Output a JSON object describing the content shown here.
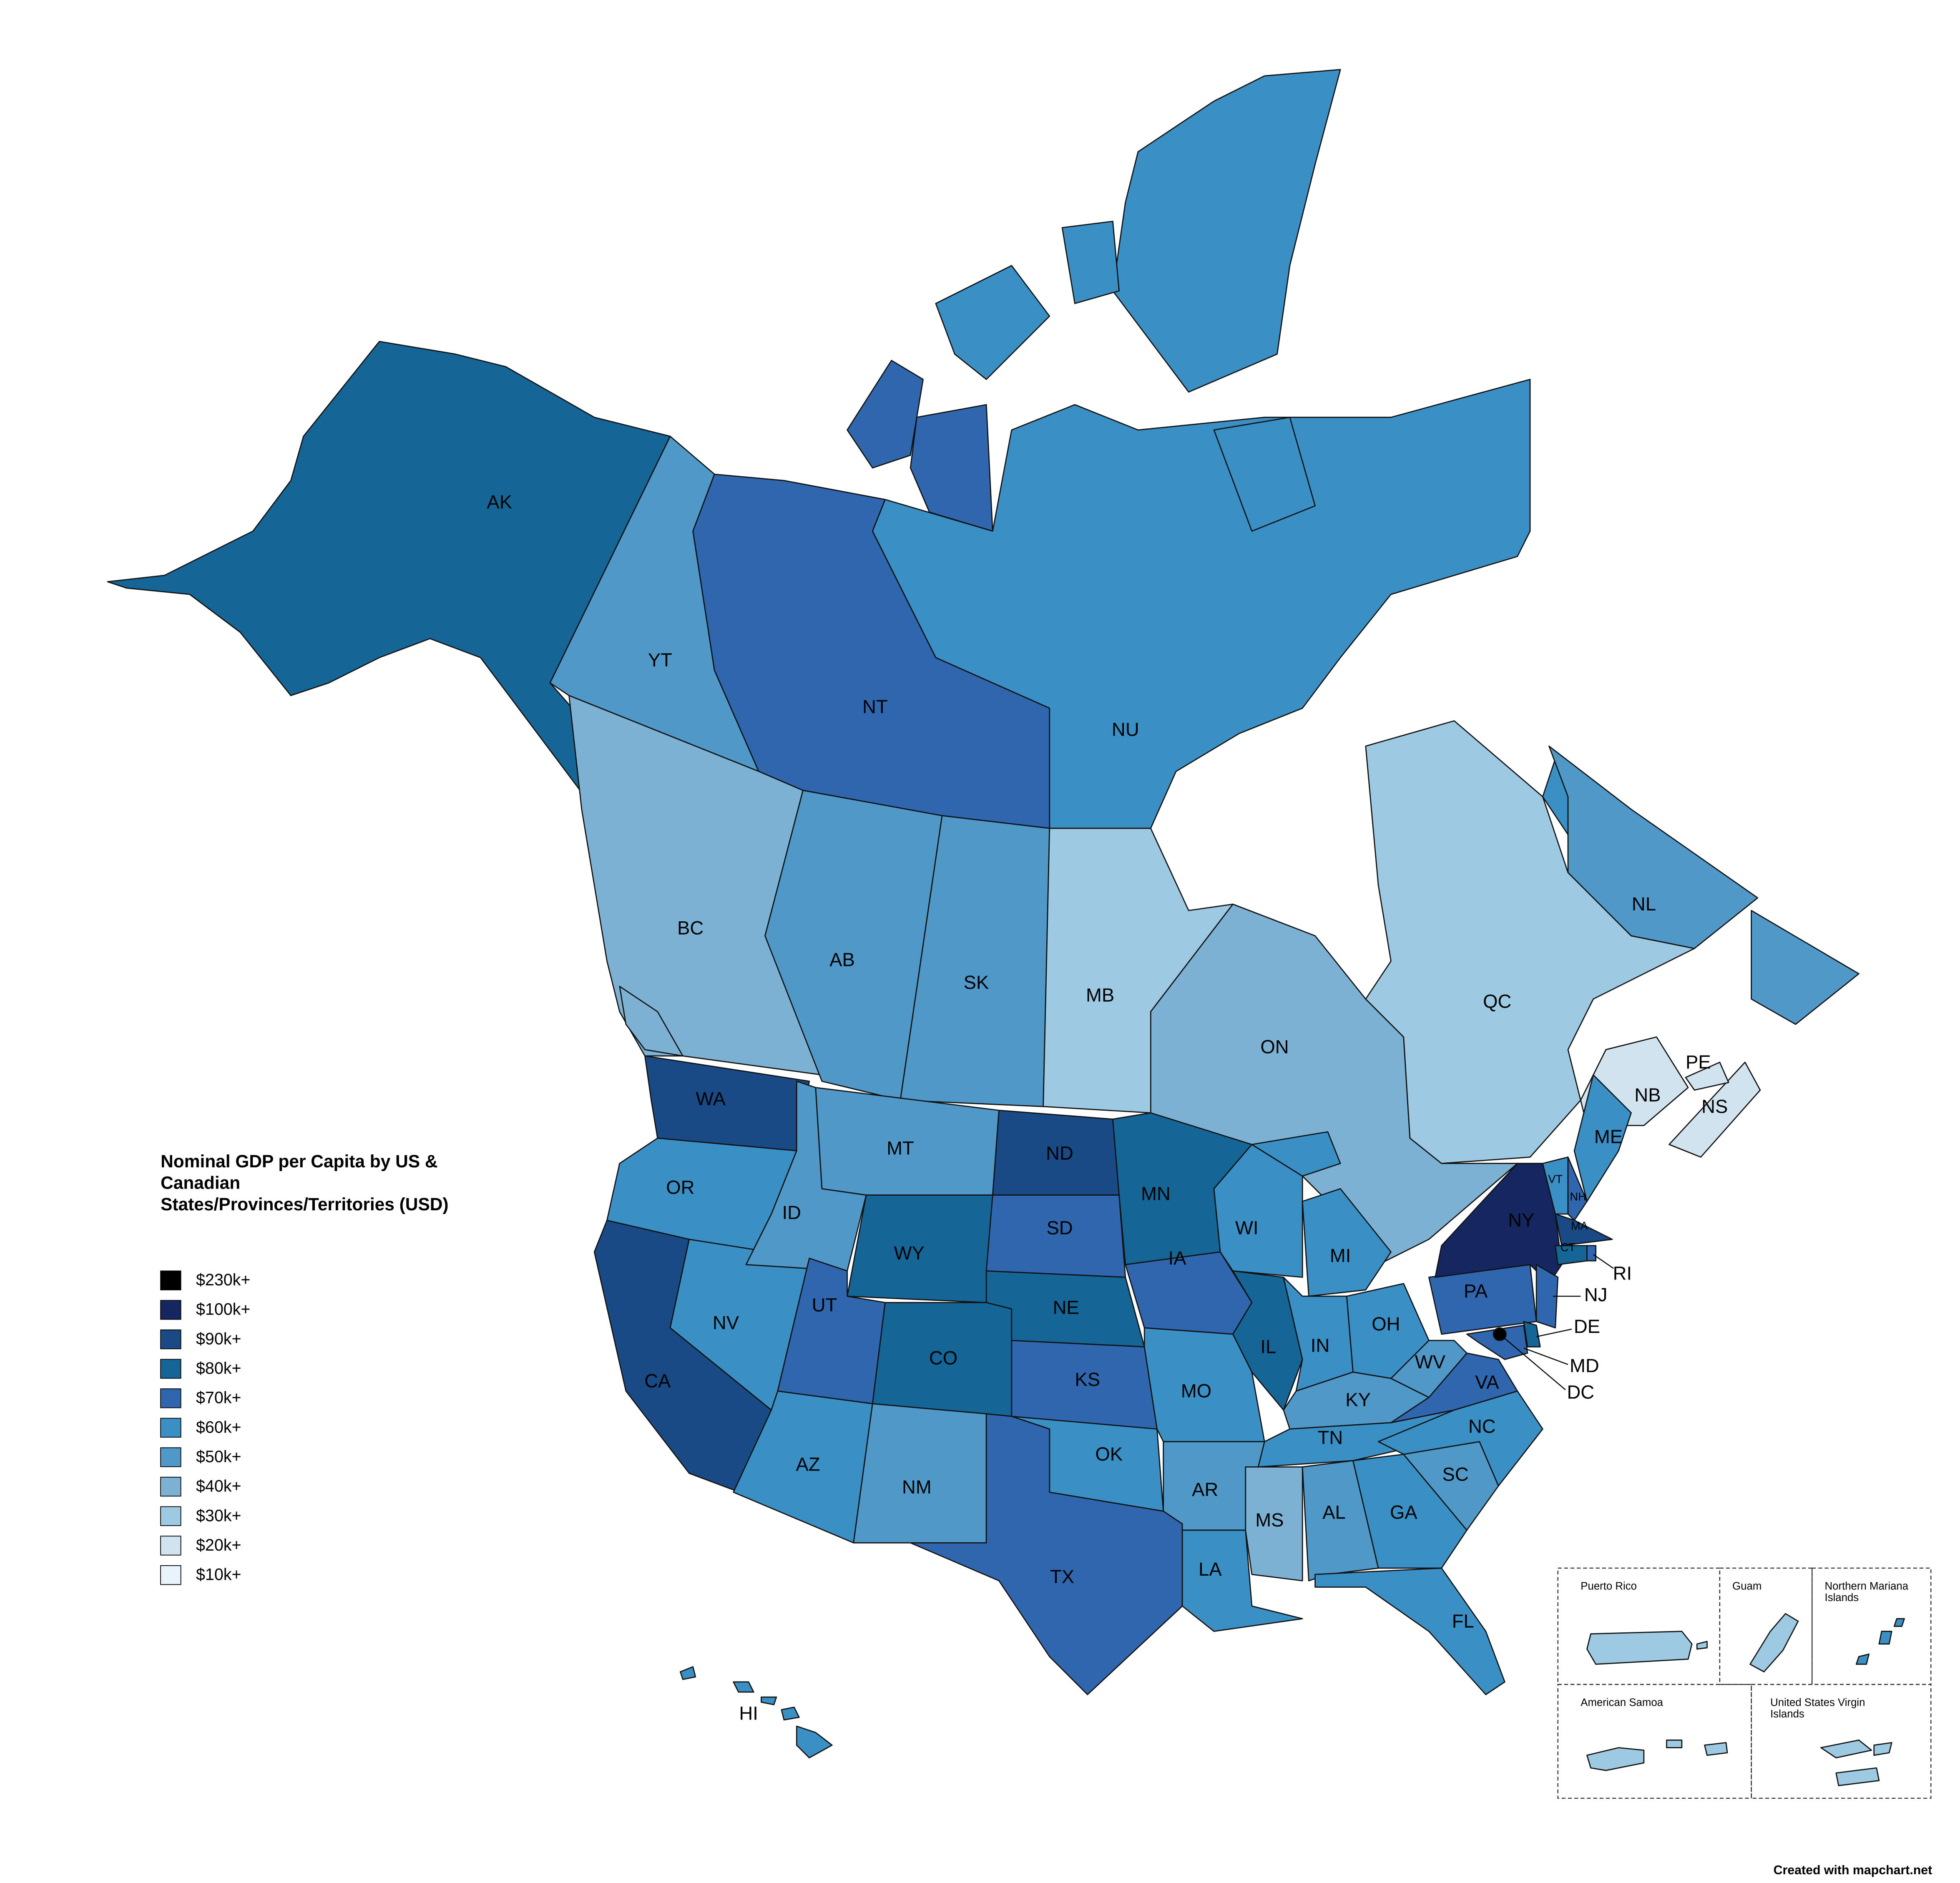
{
  "title": "Nominal GDP per Capita by US & Canadian States/Provinces/Territories (USD)",
  "legend": [
    {
      "label": "$230k+",
      "color": "#000000"
    },
    {
      "label": "$100k+",
      "color": "#14285f"
    },
    {
      "label": "$90k+",
      "color": "#1a4a86"
    },
    {
      "label": "$80k+",
      "color": "#156596"
    },
    {
      "label": "$70k+",
      "color": "#2f66ad"
    },
    {
      "label": "$60k+",
      "color": "#3a8fc4"
    },
    {
      "label": "$50k+",
      "color": "#4f98c8"
    },
    {
      "label": "$40k+",
      "color": "#7db1d4"
    },
    {
      "label": "$30k+",
      "color": "#9dcae2"
    },
    {
      "label": "$20k+",
      "color": "#d0e3ee"
    },
    {
      "label": "$10k+",
      "color": "#e9f4fa"
    }
  ],
  "regions": [
    {
      "label": "AK",
      "color": "#156596"
    },
    {
      "label": "YT",
      "color": "#4f98c8"
    },
    {
      "label": "NT",
      "color": "#2f66ad"
    },
    {
      "label": "NU",
      "color": "#3a8fc4"
    },
    {
      "label": "BC",
      "color": "#7db1d4"
    },
    {
      "label": "AB",
      "color": "#4f98c8"
    },
    {
      "label": "SK",
      "color": "#4f98c8"
    },
    {
      "label": "MB",
      "color": "#9dcae2"
    },
    {
      "label": "ON",
      "color": "#7db1d4"
    },
    {
      "label": "QC",
      "color": "#9dcae2"
    },
    {
      "label": "NL",
      "color": "#4f98c8"
    },
    {
      "label": "NB",
      "color": "#d0e3ee"
    },
    {
      "label": "NS",
      "color": "#d0e3ee"
    },
    {
      "label": "PE",
      "color": "#d0e3ee"
    },
    {
      "label": "WA",
      "color": "#1a4a86"
    },
    {
      "label": "OR",
      "color": "#3a8fc4"
    },
    {
      "label": "CA",
      "color": "#1a4a86"
    },
    {
      "label": "NV",
      "color": "#3a8fc4"
    },
    {
      "label": "ID",
      "color": "#4f98c8"
    },
    {
      "label": "MT",
      "color": "#4f98c8"
    },
    {
      "label": "WY",
      "color": "#156596"
    },
    {
      "label": "UT",
      "color": "#2f66ad"
    },
    {
      "label": "CO",
      "color": "#156596"
    },
    {
      "label": "AZ",
      "color": "#3a8fc4"
    },
    {
      "label": "NM",
      "color": "#4f98c8"
    },
    {
      "label": "ND",
      "color": "#1a4a86"
    },
    {
      "label": "SD",
      "color": "#2f66ad"
    },
    {
      "label": "NE",
      "color": "#156596"
    },
    {
      "label": "KS",
      "color": "#2f66ad"
    },
    {
      "label": "OK",
      "color": "#3a8fc4"
    },
    {
      "label": "TX",
      "color": "#2f66ad"
    },
    {
      "label": "MN",
      "color": "#156596"
    },
    {
      "label": "IA",
      "color": "#2f66ad"
    },
    {
      "label": "MO",
      "color": "#3a8fc4"
    },
    {
      "label": "AR",
      "color": "#4f98c8"
    },
    {
      "label": "LA",
      "color": "#3a8fc4"
    },
    {
      "label": "WI",
      "color": "#3a8fc4"
    },
    {
      "label": "IL",
      "color": "#156596"
    },
    {
      "label": "MI",
      "color": "#3a8fc4"
    },
    {
      "label": "IN",
      "color": "#3a8fc4"
    },
    {
      "label": "OH",
      "color": "#3a8fc4"
    },
    {
      "label": "KY",
      "color": "#4f98c8"
    },
    {
      "label": "TN",
      "color": "#3a8fc4"
    },
    {
      "label": "MS",
      "color": "#7db1d4"
    },
    {
      "label": "AL",
      "color": "#4f98c8"
    },
    {
      "label": "GA",
      "color": "#3a8fc4"
    },
    {
      "label": "FL",
      "color": "#3a8fc4"
    },
    {
      "label": "SC",
      "color": "#4f98c8"
    },
    {
      "label": "NC",
      "color": "#3a8fc4"
    },
    {
      "label": "VA",
      "color": "#2f66ad"
    },
    {
      "label": "WV",
      "color": "#4f98c8"
    },
    {
      "label": "PA",
      "color": "#2f66ad"
    },
    {
      "label": "NY",
      "color": "#14285f"
    },
    {
      "label": "VT",
      "color": "#3a8fc4"
    },
    {
      "label": "NH",
      "color": "#2f66ad"
    },
    {
      "label": "ME",
      "color": "#3a8fc4"
    },
    {
      "label": "MA",
      "color": "#1a4a86"
    },
    {
      "label": "CT",
      "color": "#156596"
    },
    {
      "label": "RI",
      "color": "#2f66ad"
    },
    {
      "label": "NJ",
      "color": "#2f66ad"
    },
    {
      "label": "DE",
      "color": "#156596"
    },
    {
      "label": "MD",
      "color": "#2f66ad"
    },
    {
      "label": "DC",
      "color": "#000000"
    },
    {
      "label": "HI",
      "color": "#3a8fc4"
    }
  ],
  "insets": [
    {
      "name": "Puerto Rico",
      "color": "#9dcae2"
    },
    {
      "name": "Guam",
      "color": "#9dcae2"
    },
    {
      "name": "Northern Mariana Islands",
      "color": "#3a8fc4"
    },
    {
      "name": "American Samoa",
      "color": "#9dcae2"
    },
    {
      "name": "United States Virgin Islands",
      "color": "#9dcae2"
    }
  ],
  "credit": "Created with mapchart.net"
}
